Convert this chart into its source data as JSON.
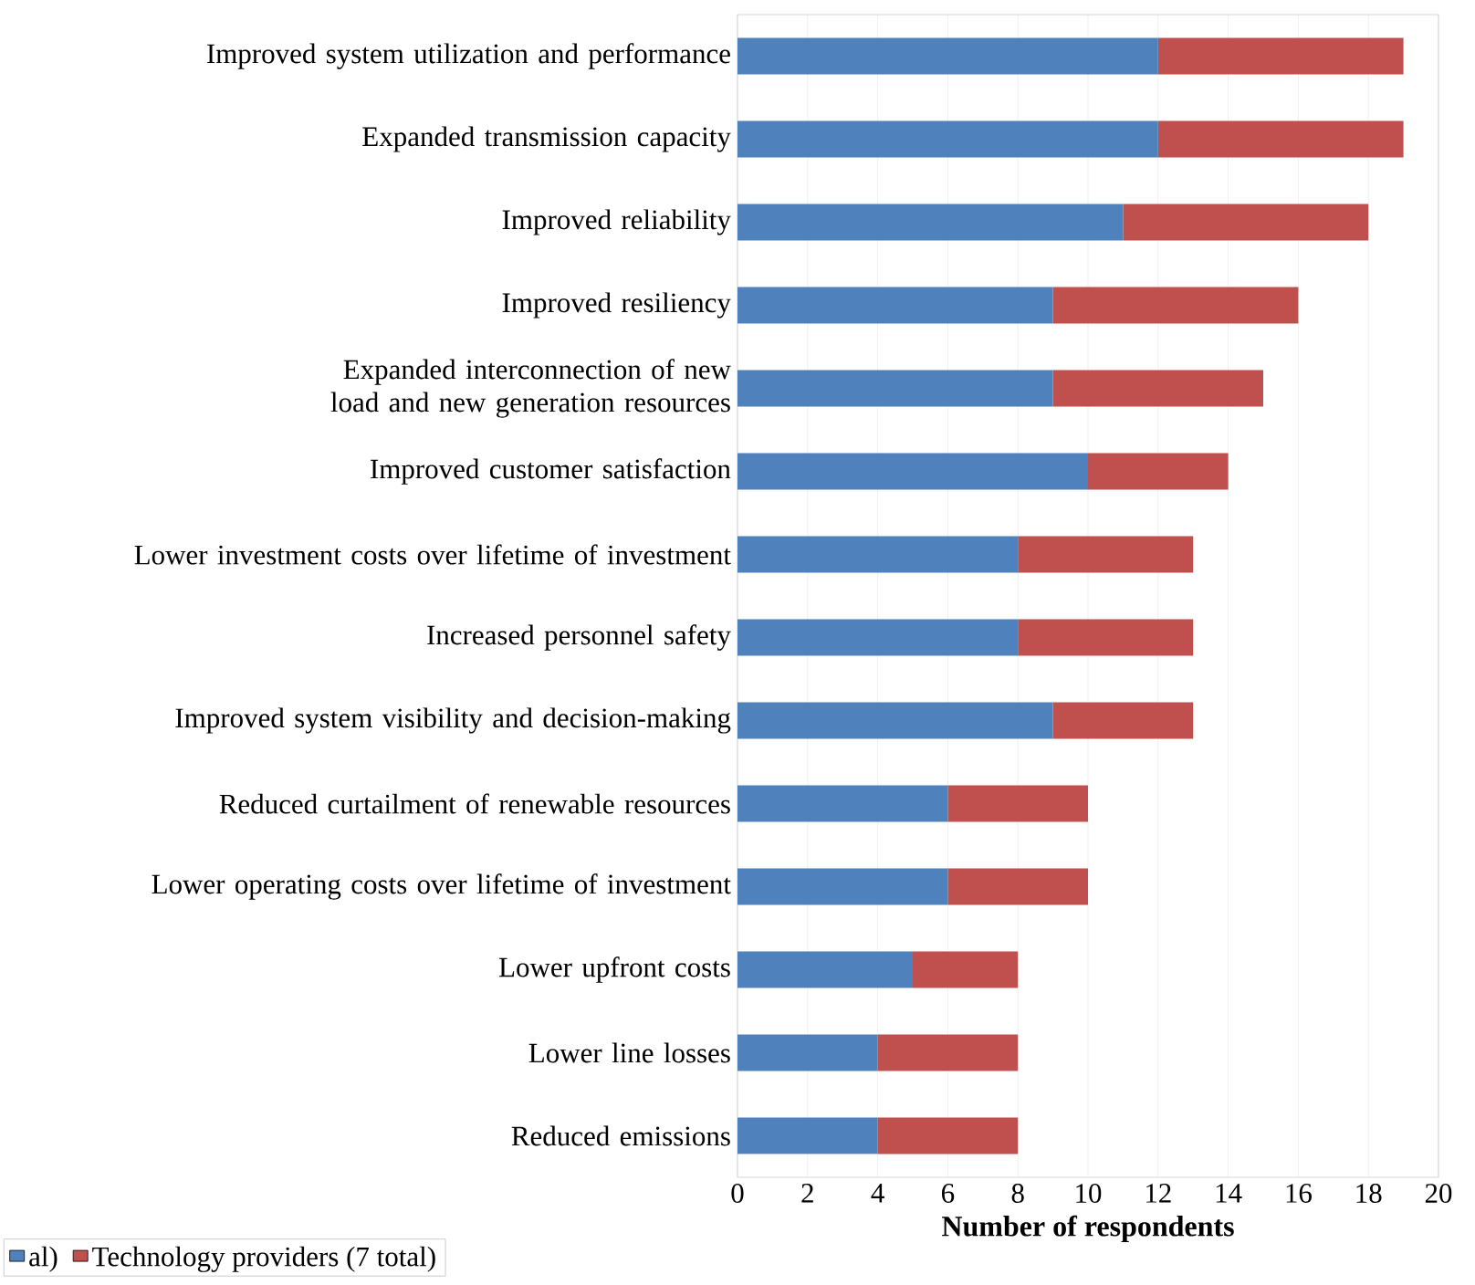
{
  "chart_data": {
    "type": "bar",
    "orientation": "horizontal",
    "stacked": true,
    "categories": [
      "Improved system utilization and performance",
      "Expanded transmission capacity",
      "Improved reliability",
      "Improved resiliency",
      "Expanded interconnection of new load and new generation resources",
      "Improved customer satisfaction",
      "Lower investment costs over lifetime of investment",
      "Increased personnel safety",
      "Improved system visibility and decision-making",
      "Reduced curtailment of renewable resources",
      "Lower operating costs over lifetime of investment",
      "Lower upfront costs",
      "Lower line losses",
      "Reduced emissions"
    ],
    "series": [
      {
        "name": "al)",
        "color": "#4f81bd",
        "values": [
          12,
          12,
          11,
          9,
          9,
          10,
          8,
          8,
          9,
          6,
          6,
          5,
          4,
          4
        ]
      },
      {
        "name": "Technology providers (7 total)",
        "color": "#c0504d",
        "values": [
          7,
          7,
          7,
          7,
          6,
          4,
          5,
          5,
          4,
          4,
          4,
          3,
          4,
          4
        ]
      }
    ],
    "xlabel": "Number of respondents",
    "xlim": [
      0,
      20
    ],
    "xticks": [
      0,
      2,
      4,
      6,
      8,
      10,
      12,
      14,
      16,
      18,
      20
    ],
    "grid": "x",
    "legend": "bottom left"
  }
}
